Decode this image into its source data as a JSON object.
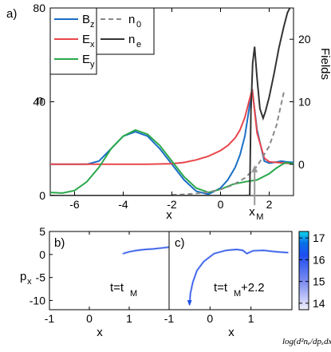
{
  "chart_data": [
    {
      "panel_label": "a)",
      "type": "line",
      "xlabel": "x",
      "ylabel": "n",
      "ylabel_right": "Fields",
      "xlim": [
        -7,
        3
      ],
      "ylim": [
        0,
        80
      ],
      "ylim_right": [
        -5,
        25
      ],
      "xticks": [
        -6,
        -4,
        -2,
        0,
        2
      ],
      "yticks": [
        0,
        40,
        80
      ],
      "yticks_right": [
        0,
        10,
        20
      ],
      "xM_label": "x",
      "xM_sub": "M",
      "legend_fields": [
        {
          "label": "B",
          "sub": "z",
          "color": "#1a6fc4"
        },
        {
          "label": "E",
          "sub": "x",
          "color": "#e8474b"
        },
        {
          "label": "E",
          "sub": "y",
          "color": "#2aa84a"
        }
      ],
      "legend_density": [
        {
          "label": "n",
          "sub": "0",
          "color": "#888888",
          "dashed": true
        },
        {
          "label": "n",
          "sub": "e",
          "color": "#333333",
          "dashed": false
        }
      ],
      "series": [
        {
          "key": "Bz",
          "axis": "right",
          "color": "#1a6fc4",
          "x": [
            -7,
            -5.5,
            -5,
            -4.5,
            -4,
            -3.5,
            -3,
            -2.5,
            -2,
            -1.5,
            -1,
            -0.5,
            0,
            0.3,
            0.6,
            0.8,
            1.0,
            1.2,
            1.3,
            1.5,
            1.8,
            2.0,
            2.2,
            2.5,
            2.7,
            3.0
          ],
          "y": [
            0,
            0,
            0.5,
            2.5,
            4.5,
            5.2,
            4.5,
            2.5,
            0,
            -2.5,
            -4.3,
            -4.8,
            -3.8,
            -2.5,
            -0.5,
            1.5,
            4.5,
            9.5,
            12.0,
            5.5,
            0.5,
            0.2,
            0.3,
            0.5,
            0.4,
            0.3
          ]
        },
        {
          "key": "Ex",
          "axis": "right",
          "color": "#e8474b",
          "x": [
            -7,
            -3,
            -2,
            -1.5,
            -1,
            -0.5,
            0,
            0.3,
            0.6,
            0.8,
            1.0,
            1.2,
            1.3,
            1.5,
            1.8,
            2.0,
            2.3,
            2.6,
            3.0
          ],
          "y": [
            0,
            0,
            0.1,
            0.3,
            0.7,
            1.3,
            2.2,
            3.0,
            4.2,
            5.5,
            7.5,
            10.5,
            12.0,
            5.0,
            1.0,
            0.4,
            0.3,
            0.2,
            0.1
          ]
        },
        {
          "key": "Ey",
          "axis": "right",
          "color": "#2aa84a",
          "x": [
            -7,
            -6.5,
            -6,
            -5.5,
            -5,
            -4.5,
            -4,
            -3.5,
            -3,
            -2.5,
            -2,
            -1.5,
            -1,
            -0.5,
            0,
            0.5,
            1.0,
            1.5,
            2.0,
            2.3,
            2.5,
            2.7,
            3.0
          ],
          "y": [
            -4.5,
            -4.6,
            -4.2,
            -2.8,
            -0.5,
            2.5,
            4.5,
            5.5,
            4.8,
            3.0,
            0.5,
            -2.0,
            -3.8,
            -4.5,
            -4.0,
            -3.2,
            -2.8,
            -2.5,
            -1.5,
            -0.6,
            -0.1,
            0.3,
            0.1
          ]
        },
        {
          "key": "n0",
          "axis": "left",
          "color": "#888888",
          "dashed": true,
          "x": [
            -2,
            -1.5,
            -1,
            -0.5,
            0,
            0.5,
            1.0,
            1.5,
            2.0,
            2.3,
            2.6
          ],
          "y": [
            0.3,
            0.5,
            0.9,
            1.5,
            2.6,
            4.5,
            7.5,
            12.5,
            21.0,
            30.0,
            44.0
          ]
        },
        {
          "key": "ne",
          "axis": "left",
          "color": "#333333",
          "x": [
            -7,
            1.0,
            1.2,
            1.25,
            1.32,
            1.4,
            1.5,
            1.62,
            1.75,
            1.85,
            2.0,
            2.2,
            2.4,
            2.6,
            2.75,
            2.85
          ],
          "y": [
            0,
            0,
            0.1,
            36.0,
            56.5,
            63.5,
            50.0,
            37.0,
            33.0,
            36.0,
            42.0,
            52.0,
            63.0,
            72.0,
            78.0,
            80.0
          ]
        }
      ]
    },
    {
      "panel_label": "b)",
      "type": "scatter",
      "xlabel": "x",
      "ylabel": "p",
      "ylabel_sub": "x",
      "xlim": [
        -1,
        2
      ],
      "ylim": [
        -12,
        5
      ],
      "xticks": [
        -1,
        0,
        1
      ],
      "yticks": [
        5,
        0,
        -5,
        -10
      ],
      "annotation": "t=t",
      "annotation_sub": "M",
      "trajectory": {
        "x": [
          0.85,
          1.0,
          1.2,
          1.4,
          1.6,
          1.8,
          2.0
        ],
        "y": [
          0.2,
          0.6,
          0.9,
          1.1,
          1.2,
          1.4,
          1.6
        ]
      }
    },
    {
      "panel_label": "c)",
      "type": "scatter",
      "xlabel": "x",
      "xlim": [
        -1,
        2
      ],
      "ylim": [
        -12,
        5
      ],
      "xticks": [
        -1,
        0,
        1
      ],
      "annotation": "t=t",
      "annotation_sub": "M",
      "annotation_suffix": "+2.2",
      "trajectory": {
        "x": [
          -0.5,
          -0.48,
          -0.42,
          -0.32,
          -0.15,
          0.1,
          0.4,
          0.65,
          0.8,
          0.9,
          1.05,
          1.3,
          1.6,
          1.9
        ],
        "y": [
          -10.8,
          -8.5,
          -6.0,
          -3.5,
          -1.5,
          0.2,
          0.9,
          1.1,
          0.9,
          0.2,
          0.8,
          0.9,
          0.6,
          0.4
        ]
      }
    }
  ],
  "colorbar": {
    "ticks": [
      14,
      15,
      16,
      17
    ],
    "range": [
      13.7,
      17.3
    ],
    "label": "log(d²nₑ/dpₓdx)"
  }
}
